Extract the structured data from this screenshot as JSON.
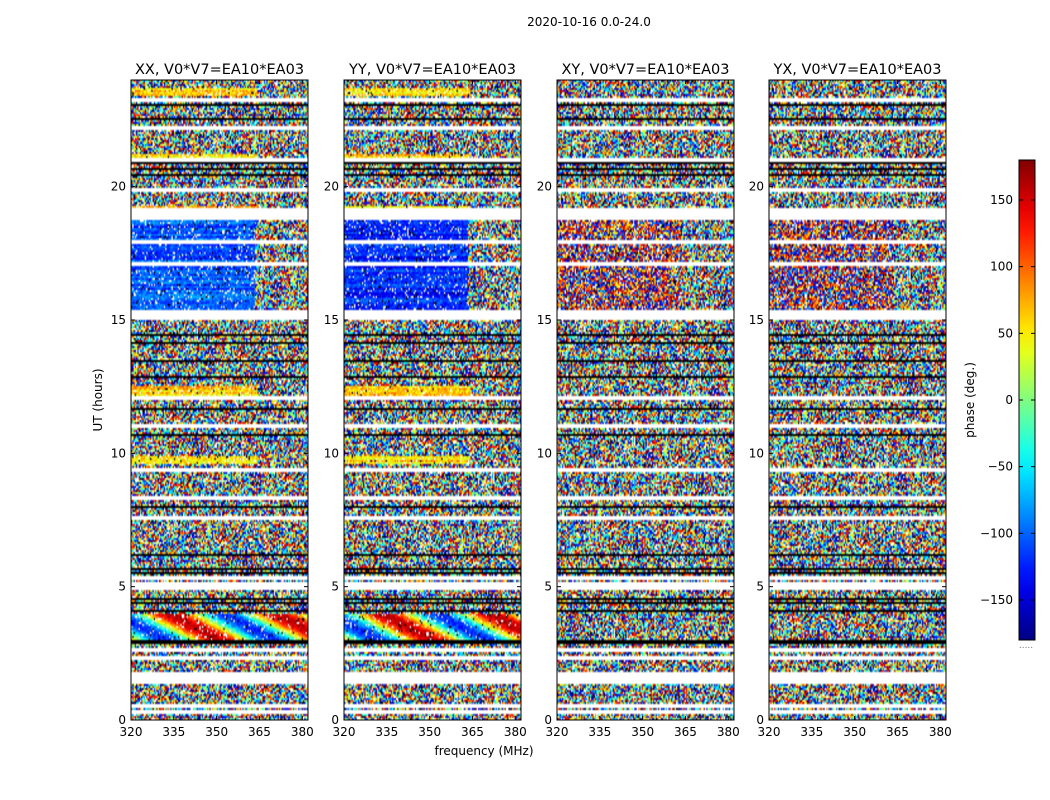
{
  "chart_data": {
    "type": "heatmap",
    "suptitle": "2020-10-16 0.0-24.0",
    "xlabel": "frequency (MHz)",
    "ylabel": "UT (hours)",
    "xlim": [
      320,
      382
    ],
    "ylim": [
      0,
      24
    ],
    "x_ticks": [
      320,
      335,
      350,
      365,
      380
    ],
    "y_ticks": [
      0,
      5,
      10,
      15,
      20
    ],
    "panels": [
      {
        "title": "XX, V0*V7=EA10*EA03",
        "correlation": "XX",
        "mean_phase_16_19h_deg": -105
      },
      {
        "title": "YY, V0*V7=EA10*EA03",
        "correlation": "YY",
        "mean_phase_16_19h_deg": -125
      },
      {
        "title": "XY, V0*V7=EA10*EA03",
        "correlation": "XY",
        "mean_phase_16_19h_deg": 160
      },
      {
        "title": "YX, V0*V7=EA10*EA03",
        "correlation": "YX",
        "mean_phase_16_19h_deg": 170
      }
    ],
    "colorbar": {
      "label": "phase (deg.)",
      "range": [
        -180,
        180
      ],
      "ticks": [
        -150,
        -100,
        -50,
        0,
        50,
        100,
        150
      ],
      "colormap": "jet",
      "below_label": "....."
    },
    "flagged_white_hours": [
      0.3,
      0.55,
      1.45,
      1.6,
      1.75,
      2.35,
      2.6,
      4.95,
      5.1,
      5.3,
      7.6,
      8.3,
      9.4,
      11.0,
      12.1,
      15.1,
      15.2,
      15.3,
      17.1,
      17.9,
      18.8,
      19.0,
      19.15,
      19.9,
      21.0,
      22.2,
      23.25
    ],
    "flagged_black_hours": [
      2.9,
      3.0,
      4.15,
      4.4,
      4.6,
      5.55,
      5.7,
      6.2,
      8.0,
      10.75,
      11.7,
      12.9,
      13.5,
      14.2,
      14.5,
      20.5,
      20.7,
      20.95,
      22.6,
      23.1
    ]
  }
}
